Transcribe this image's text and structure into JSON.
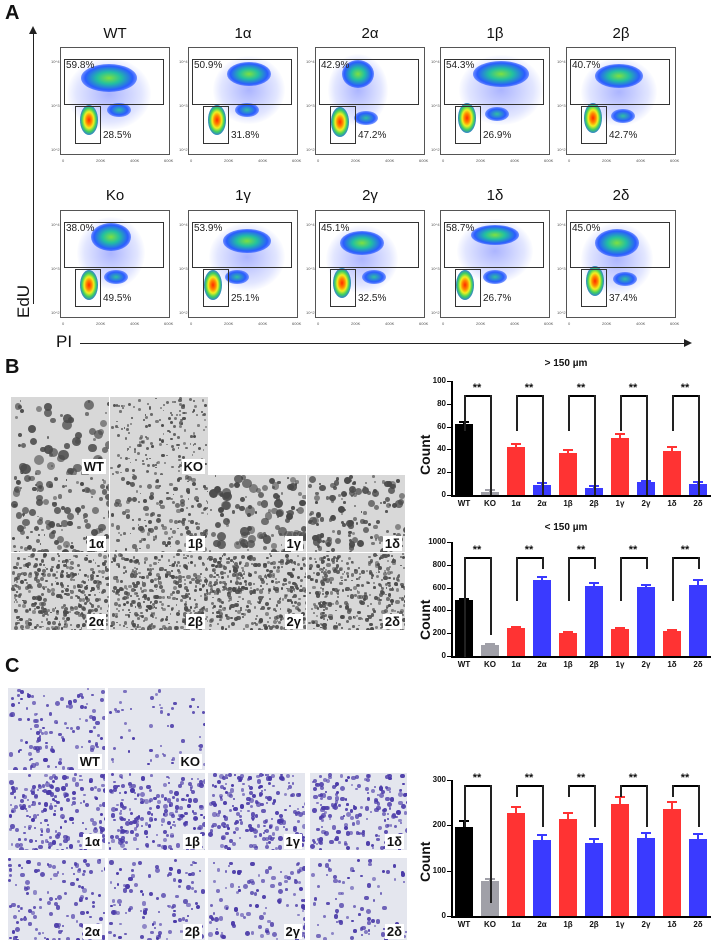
{
  "panel_labels": {
    "a": "A",
    "b": "B",
    "c": "C"
  },
  "panelA": {
    "y_axis_label": "EdU",
    "x_axis_label": "PI",
    "x_ticks": [
      "0",
      "200K",
      "400K",
      "600K"
    ],
    "y_ticks": [
      "10^4",
      "10^3",
      "10^2"
    ],
    "plots": [
      {
        "title": "WT",
        "upper_pct": "59.8%",
        "lower_pct": "28.5%"
      },
      {
        "title": "1α",
        "upper_pct": "50.9%",
        "lower_pct": "31.8%"
      },
      {
        "title": "2α",
        "upper_pct": "42.9%",
        "lower_pct": "47.2%"
      },
      {
        "title": "1β",
        "upper_pct": "54.3%",
        "lower_pct": "26.9%"
      },
      {
        "title": "2β",
        "upper_pct": "40.7%",
        "lower_pct": "42.7%"
      },
      {
        "title": "Ko",
        "upper_pct": "38.0%",
        "lower_pct": "49.5%"
      },
      {
        "title": "1γ",
        "upper_pct": "53.9%",
        "lower_pct": "25.1%"
      },
      {
        "title": "2γ",
        "upper_pct": "45.1%",
        "lower_pct": "32.5%"
      },
      {
        "title": "1δ",
        "upper_pct": "58.7%",
        "lower_pct": "26.7%"
      },
      {
        "title": "2δ",
        "upper_pct": "45.0%",
        "lower_pct": "37.4%"
      }
    ]
  },
  "panelB": {
    "image_labels": [
      "WT",
      "KO",
      "1α",
      "1β",
      "1γ",
      "1δ",
      "2α",
      "2β",
      "2γ",
      "2δ"
    ]
  },
  "panelC": {
    "image_labels": [
      "WT",
      "KO",
      "1α",
      "1β",
      "1γ",
      "1δ",
      "2α",
      "2β",
      "2γ",
      "2δ"
    ]
  },
  "colors": {
    "wt": "#000000",
    "ko": "#a0a0a8",
    "group1": "#ff3333",
    "group2": "#3a3aff"
  },
  "chart_data": [
    {
      "type": "bar",
      "title": "> 150 µm",
      "xlabel": "",
      "ylabel": "Count",
      "ylim": [
        0,
        100
      ],
      "yticks": [
        0,
        20,
        40,
        60,
        80,
        100
      ],
      "categories": [
        "WT",
        "KO",
        "1α",
        "2α",
        "1β",
        "2β",
        "1γ",
        "2γ",
        "1δ",
        "2δ"
      ],
      "values": [
        62,
        3,
        42,
        9,
        37,
        6,
        50,
        11,
        39,
        10
      ],
      "errors": [
        3,
        2,
        4,
        2,
        3,
        3,
        4,
        2,
        4,
        2
      ],
      "significance": [
        {
          "pair": [
            "WT",
            "KO"
          ],
          "label": "**"
        },
        {
          "pair": [
            "1α",
            "2α"
          ],
          "label": "**"
        },
        {
          "pair": [
            "1β",
            "2β"
          ],
          "label": "**"
        },
        {
          "pair": [
            "1γ",
            "2γ"
          ],
          "label": "**"
        },
        {
          "pair": [
            "1δ",
            "2δ"
          ],
          "label": "**"
        }
      ]
    },
    {
      "type": "bar",
      "title": "< 150 µm",
      "xlabel": "",
      "ylabel": "Count",
      "ylim": [
        0,
        1000
      ],
      "yticks": [
        0,
        200,
        400,
        600,
        800,
        1000
      ],
      "categories": [
        "WT",
        "KO",
        "1α",
        "2α",
        "1β",
        "2β",
        "1γ",
        "2γ",
        "1δ",
        "2δ"
      ],
      "values": [
        490,
        100,
        250,
        670,
        205,
        615,
        240,
        605,
        220,
        620
      ],
      "errors": [
        20,
        10,
        15,
        35,
        15,
        35,
        15,
        30,
        20,
        55
      ],
      "significance": [
        {
          "pair": [
            "WT",
            "KO"
          ],
          "label": "**"
        },
        {
          "pair": [
            "1α",
            "2α"
          ],
          "label": "**"
        },
        {
          "pair": [
            "1β",
            "2β"
          ],
          "label": "**"
        },
        {
          "pair": [
            "1γ",
            "2γ"
          ],
          "label": "**"
        },
        {
          "pair": [
            "1δ",
            "2δ"
          ],
          "label": "**"
        }
      ]
    },
    {
      "type": "bar",
      "title": "",
      "xlabel": "",
      "ylabel": "Count",
      "ylim": [
        0,
        300
      ],
      "yticks": [
        0,
        100,
        200,
        300
      ],
      "categories": [
        "WT",
        "KO",
        "1α",
        "2α",
        "1β",
        "2β",
        "1γ",
        "2γ",
        "1δ",
        "2δ"
      ],
      "values": [
        197,
        77,
        228,
        167,
        213,
        160,
        247,
        172,
        236,
        169
      ],
      "errors": [
        14,
        6,
        15,
        14,
        16,
        12,
        18,
        14,
        18,
        13
      ],
      "significance": [
        {
          "pair": [
            "WT",
            "KO"
          ],
          "label": "**"
        },
        {
          "pair": [
            "1α",
            "2α"
          ],
          "label": "**"
        },
        {
          "pair": [
            "1β",
            "2β"
          ],
          "label": "**"
        },
        {
          "pair": [
            "1γ",
            "2γ"
          ],
          "label": "**"
        },
        {
          "pair": [
            "1δ",
            "2δ"
          ],
          "label": "**"
        }
      ]
    }
  ]
}
